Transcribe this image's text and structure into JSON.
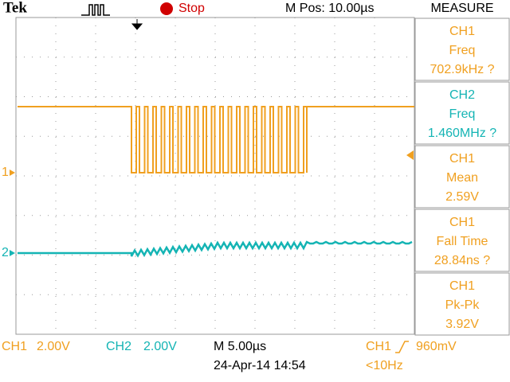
{
  "header": {
    "brand": "Tek",
    "status": "Stop",
    "position": "M Pos: 10.00µs"
  },
  "measure": {
    "title": "MEASURE",
    "items": [
      {
        "source": "CH1",
        "type": "Freq",
        "value": "702.9kHz ?"
      },
      {
        "source": "CH2",
        "type": "Freq",
        "value": "1.460MHz ?"
      },
      {
        "source": "CH1",
        "type": "Mean",
        "value": "2.59V"
      },
      {
        "source": "CH1",
        "type": "Fall Time",
        "value": "28.84ns ?"
      },
      {
        "source": "CH1",
        "type": "Pk-Pk",
        "value": "3.92V"
      }
    ]
  },
  "markers": {
    "ch1": "1",
    "ch2": "2"
  },
  "footer": {
    "ch1_label": "CH1",
    "ch1_scale": "2.00V",
    "ch2_label": "CH2",
    "ch2_scale": "2.00V",
    "timebase": "M 5.00µs",
    "date": "24-Apr-14 14:54",
    "trigger_source": "CH1",
    "trigger_level": "960mV",
    "trigger_freq": "<10Hz"
  }
}
